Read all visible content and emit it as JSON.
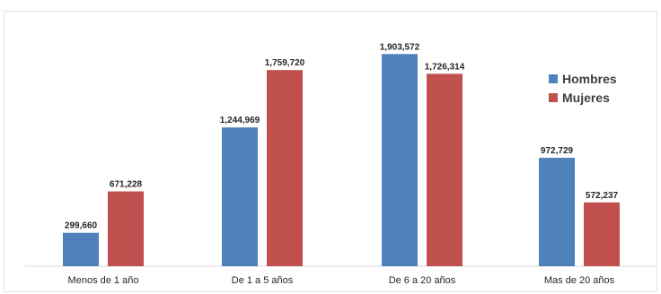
{
  "chart_data": {
    "type": "bar",
    "title": "",
    "xlabel": "",
    "ylabel": "",
    "categories": [
      "Menos de 1 año",
      "De 1 a 5 años",
      "De 6 a 20 años",
      "Mas de 20 años"
    ],
    "series": [
      {
        "name": "Hombres",
        "color": "#4f81bd",
        "values": [
          299660,
          1244969,
          1903572,
          972729
        ],
        "labels": [
          "299,660",
          "1,244,969",
          "1,903,572",
          "972,729"
        ]
      },
      {
        "name": "Mujeres",
        "color": "#c0504d",
        "values": [
          671228,
          1759720,
          1726314,
          572237
        ],
        "labels": [
          "671,228",
          "1,759,720",
          "1,726,314",
          "572,237"
        ]
      }
    ],
    "ylim": [
      0,
      1930000
    ],
    "grid": false,
    "legend": "right"
  }
}
